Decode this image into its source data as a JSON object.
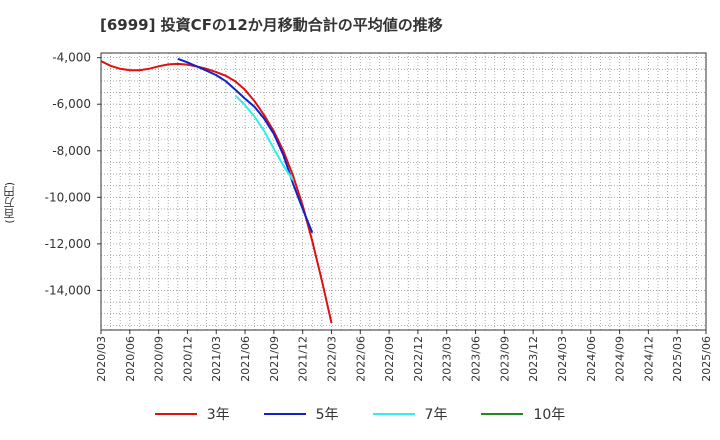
{
  "chart_data": {
    "type": "line",
    "title": "[6999]  投資CFの12か月移動合計の平均値の推移",
    "ylabel": "(百万円)",
    "xlabel": "",
    "ylim": [
      -15700,
      -3800
    ],
    "yticks": [
      -4000,
      -6000,
      -8000,
      -10000,
      -12000,
      -14000
    ],
    "ytick_labels": [
      "-4,000",
      "-6,000",
      "-8,000",
      "-10,000",
      "-12,000",
      "-14,000"
    ],
    "xtick_labels": [
      "2020/03",
      "2020/06",
      "2020/09",
      "2020/12",
      "2021/03",
      "2021/06",
      "2021/09",
      "2021/12",
      "2022/03",
      "2022/06",
      "2022/09",
      "2022/12",
      "2023/03",
      "2023/06",
      "2023/09",
      "2023/12",
      "2024/03",
      "2024/06",
      "2024/09",
      "2024/12",
      "2025/03",
      "2025/06"
    ],
    "grid": true,
    "legend_position": "bottom",
    "series": [
      {
        "name": "3年",
        "color": "#dd1111",
        "start_index": 0,
        "values": [
          -4150,
          -4350,
          -4480,
          -4540,
          -4540,
          -4480,
          -4370,
          -4290,
          -4270,
          -4300,
          -4380,
          -4480,
          -4620,
          -4780,
          -5020,
          -5380,
          -5880,
          -6480,
          -7170,
          -8020,
          -9080,
          -10350,
          -11880,
          -13580,
          -15400
        ]
      },
      {
        "name": "5年",
        "color": "#1122cc",
        "start_index": 8,
        "values": [
          -4050,
          -4200,
          -4380,
          -4560,
          -4750,
          -5010,
          -5380,
          -5760,
          -6120,
          -6630,
          -7280,
          -8200,
          -9420,
          -10500,
          -11520
        ]
      },
      {
        "name": "7年",
        "color": "#33eeee",
        "start_index": 14,
        "values": [
          -5630,
          -6040,
          -6540,
          -7160,
          -7920,
          -8640,
          -9270
        ]
      },
      {
        "name": "10年",
        "color": "#228822",
        "start_index": 0,
        "values": []
      }
    ]
  }
}
